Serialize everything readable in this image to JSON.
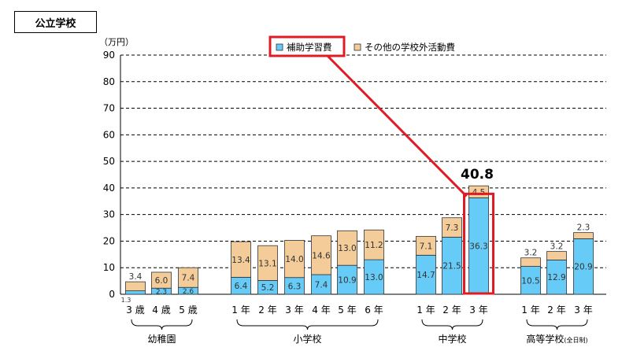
{
  "header": {
    "tag": "公立学校"
  },
  "colors": {
    "supplementary": "#66cbf6",
    "other": "#f3cc9a",
    "highlight": "#e01b24",
    "grid": "#000000"
  },
  "chart_data": {
    "type": "bar",
    "stacked": true,
    "yunit": "（万円）",
    "ylim": [
      0,
      90
    ],
    "yticks": [
      0,
      10,
      20,
      30,
      40,
      50,
      60,
      70,
      80,
      90
    ],
    "grid": "dashed-horizontal",
    "legend_position": "top-center",
    "categories": [
      "3 歳",
      "4 歳",
      "5 歳",
      "1 年",
      "2 年",
      "3 年",
      "4 年",
      "5 年",
      "6 年",
      "1 年",
      "2 年",
      "3 年",
      "1 年",
      "2 年",
      "3 年"
    ],
    "series": [
      {
        "name": "補助学習費",
        "values": [
          1.3,
          2.3,
          2.6,
          6.4,
          5.2,
          6.3,
          7.4,
          10.9,
          13.0,
          14.7,
          21.5,
          36.3,
          10.5,
          12.9,
          20.9
        ],
        "labels": [
          "1.3",
          "2.3",
          "2.6",
          "6.4",
          "5.2",
          "6.3",
          "7.4",
          "10.9",
          "13.0",
          "14.7",
          "21.5",
          "36.3",
          "10.5",
          "12.9",
          "20.9"
        ]
      },
      {
        "name": "その他の学校外活動費",
        "values": [
          3.4,
          6.0,
          7.4,
          13.4,
          13.1,
          14.0,
          14.6,
          13.0,
          11.2,
          7.1,
          7.3,
          4.5,
          3.2,
          3.2,
          2.3
        ],
        "labels": [
          "3.4",
          "6.0",
          "7.4",
          "13.4",
          "13.1",
          "14.0",
          "14.6",
          "13.0",
          "11.2",
          "7.1",
          "7.3",
          "4.5",
          "3.2",
          "3.2",
          "2.3"
        ]
      }
    ],
    "groups": [
      {
        "name": "幼稚園",
        "size": 3
      },
      {
        "name": "小学校",
        "size": 6
      },
      {
        "name": "中学校",
        "size": 3
      },
      {
        "name": "高等学校",
        "size": 3,
        "suffix": "(全日制)"
      }
    ],
    "annotations": [
      {
        "category_index": 11,
        "text": "40.8",
        "highlighted": true
      }
    ],
    "highlighted_legend_index": 0
  }
}
